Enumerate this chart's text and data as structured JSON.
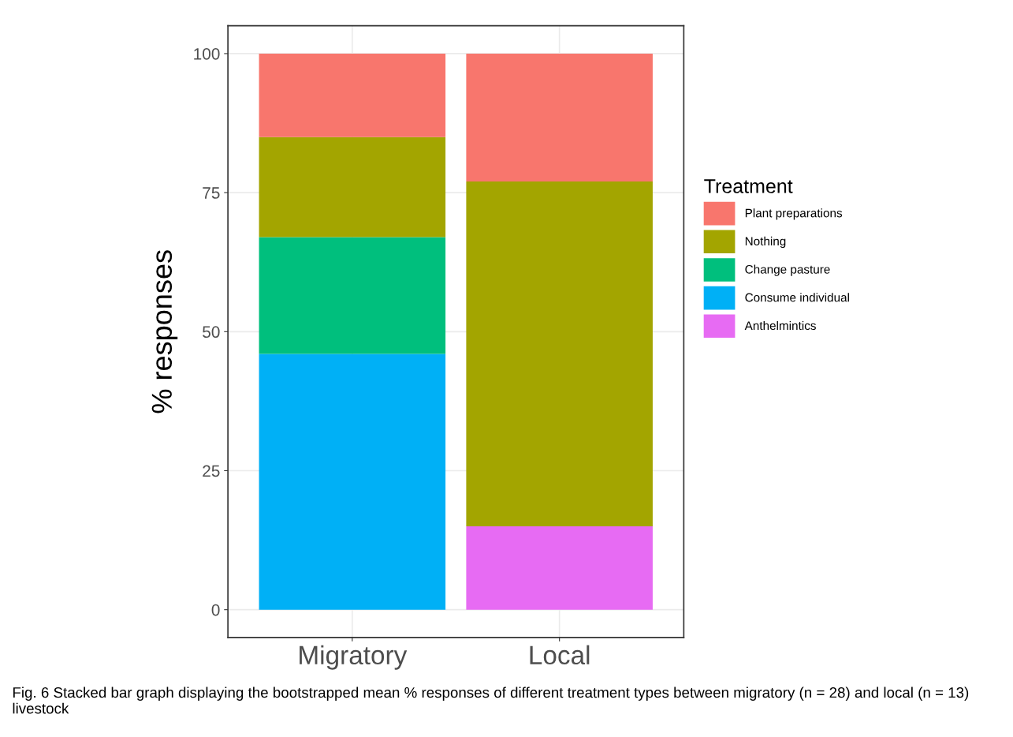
{
  "chart_data": {
    "type": "bar",
    "stacked": true,
    "ylabel": "% responses",
    "legend_title": "Treatment",
    "categories": [
      "Migratory",
      "Local"
    ],
    "series": [
      {
        "name": "Anthelmintics",
        "color": "#e76bf3",
        "values": [
          null,
          15
        ]
      },
      {
        "name": "Consume individual",
        "color": "#00b0f6",
        "values": [
          46,
          null
        ]
      },
      {
        "name": "Change pasture",
        "color": "#00bf7d",
        "values": [
          21,
          null
        ]
      },
      {
        "name": "Nothing",
        "color": "#a3a500",
        "values": [
          18,
          62
        ]
      },
      {
        "name": "Plant preparations",
        "color": "#f8766d",
        "values": [
          15,
          23
        ]
      }
    ],
    "ylim": [
      -5,
      105
    ],
    "yticks": [
      0,
      25,
      50,
      75,
      100
    ],
    "grid": true,
    "legend": "right",
    "annotations": [
      "Fig. 6 Stacked bar graph displaying the bootstrapped mean % responses of different treatment types between migratory (n = 28) and local (n = 13) livestock"
    ]
  }
}
